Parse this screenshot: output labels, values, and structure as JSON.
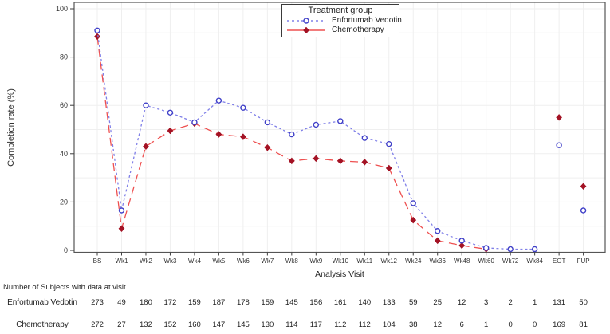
{
  "chart": {
    "y_axis_label": "Completion rate (%)",
    "x_axis_label": "Analysis Visit",
    "legend": {
      "title": "Treatment group",
      "entries": [
        {
          "label": "Enfortumab Vedotin"
        },
        {
          "label": "Chemotherapy"
        }
      ]
    },
    "colors": {
      "enfortumab_marker": "#4040c8",
      "enfortumab_line": "#8080e8",
      "chemotherapy_marker": "#a31224",
      "chemotherapy_line": "#ee5050",
      "axis": "#3c3c3c",
      "grid": "#efefef"
    }
  },
  "chart_data": {
    "type": "line",
    "title": "",
    "xlabel": "Analysis Visit",
    "ylabel": "Completion rate (%)",
    "ylim": [
      0,
      100
    ],
    "yticks": [
      0,
      20,
      40,
      60,
      80,
      100
    ],
    "grid": true,
    "legend_position": "top-center",
    "categories": [
      "BS",
      "Wk1",
      "Wk2",
      "Wk3",
      "Wk4",
      "Wk5",
      "Wk6",
      "Wk7",
      "Wk8",
      "Wk9",
      "Wk10",
      "Wk11",
      "Wk12",
      "Wk24",
      "Wk36",
      "Wk48",
      "Wk60",
      "Wk72",
      "Wk84",
      "EOT",
      "FUP"
    ],
    "series": [
      {
        "name": "Enfortumab Vedotin",
        "marker": "circle",
        "marker_color": "#4040c8",
        "line_color": "#8080e8",
        "dash": "3,3",
        "connect_until": "Wk84",
        "values": [
          91,
          16.5,
          60,
          57,
          53,
          62,
          59,
          53,
          48,
          52,
          53.5,
          46.5,
          44,
          19.5,
          8,
          4,
          1,
          0.5,
          0.5,
          43.5,
          16.5
        ]
      },
      {
        "name": "Chemotherapy",
        "marker": "diamond",
        "marker_color": "#a31224",
        "line_color": "#ee5050",
        "dash": "10,6",
        "connect_until": "Wk60",
        "values": [
          88.5,
          9,
          43,
          49.5,
          52.5,
          48,
          47,
          42.5,
          37,
          38,
          37,
          36.5,
          34,
          12.5,
          4,
          2,
          0.5,
          null,
          null,
          55,
          26.5
        ]
      }
    ]
  },
  "subjects_table": {
    "title": "Number of Subjects with data at visit",
    "rows": [
      {
        "label": "Enfortumab Vedotin",
        "counts": [
          273,
          49,
          180,
          172,
          159,
          187,
          178,
          159,
          145,
          156,
          161,
          140,
          133,
          59,
          25,
          12,
          3,
          2,
          1,
          131,
          50
        ]
      },
      {
        "label": "Chemotherapy",
        "counts": [
          272,
          27,
          132,
          152,
          160,
          147,
          145,
          130,
          114,
          117,
          112,
          112,
          104,
          38,
          12,
          6,
          1,
          0,
          0,
          169,
          81
        ]
      }
    ]
  }
}
